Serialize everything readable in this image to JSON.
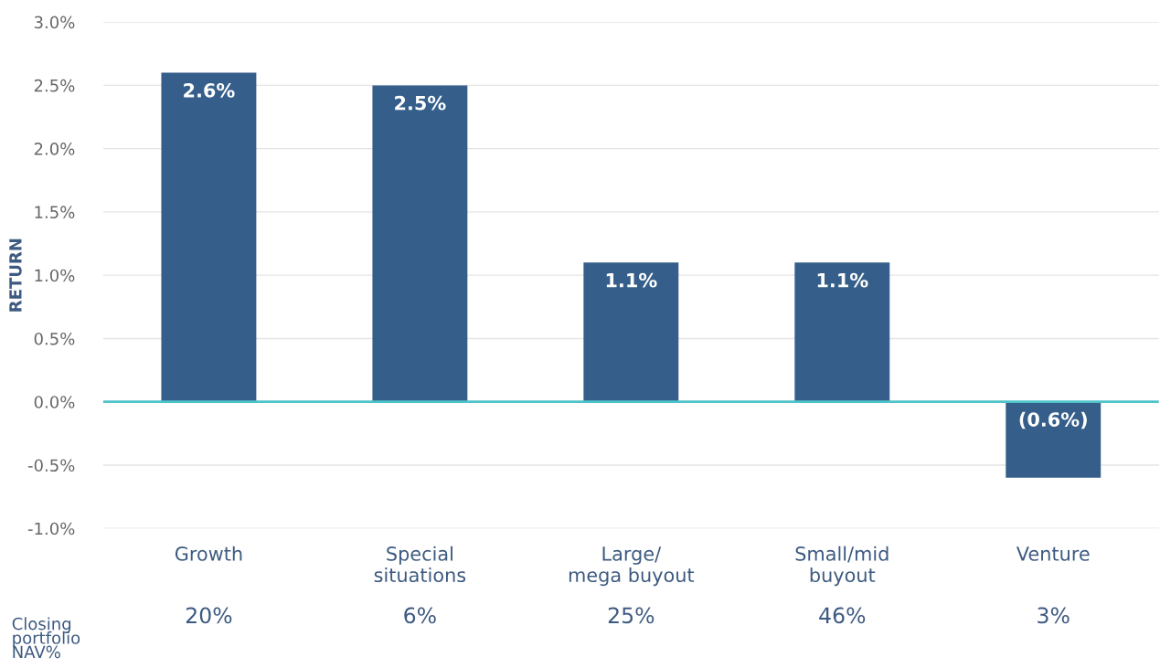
{
  "chart_data": {
    "type": "bar",
    "ylabel": "RETURN",
    "categories": [
      "Growth",
      "Special\nsituations",
      "Large/\nmega buyout",
      "Small/mid\nbuyout",
      "Venture"
    ],
    "values": [
      2.6,
      2.5,
      1.1,
      1.1,
      -0.6
    ],
    "value_labels": [
      "2.6%",
      "2.5%",
      "1.1%",
      "1.1%",
      "(0.6%)"
    ],
    "color": "#355f8a",
    "ylim": [
      -1.0,
      3.0
    ],
    "yticks": [
      {
        "value": -1.0,
        "label": "-1.0%"
      },
      {
        "value": -0.5,
        "label": "-0.5%"
      },
      {
        "value": 0,
        "label": "0.0%"
      },
      {
        "value": 0.5,
        "label": "0.5%"
      },
      {
        "value": 1.0,
        "label": "1.0%"
      },
      {
        "value": 1.5,
        "label": "1.5%"
      },
      {
        "value": 2.0,
        "label": "2.0%"
      },
      {
        "value": 2.5,
        "label": "2.5%"
      },
      {
        "value": 3.0,
        "label": "3.0%"
      }
    ],
    "grid": "y",
    "ref_lines": [
      {
        "axis": "y",
        "value": 0,
        "color": "#4fc3c9"
      }
    ],
    "annotations": [
      "Closing\nportfolio\nNAV%",
      "20%",
      "6%",
      "25%",
      "46%",
      "3%"
    ]
  }
}
